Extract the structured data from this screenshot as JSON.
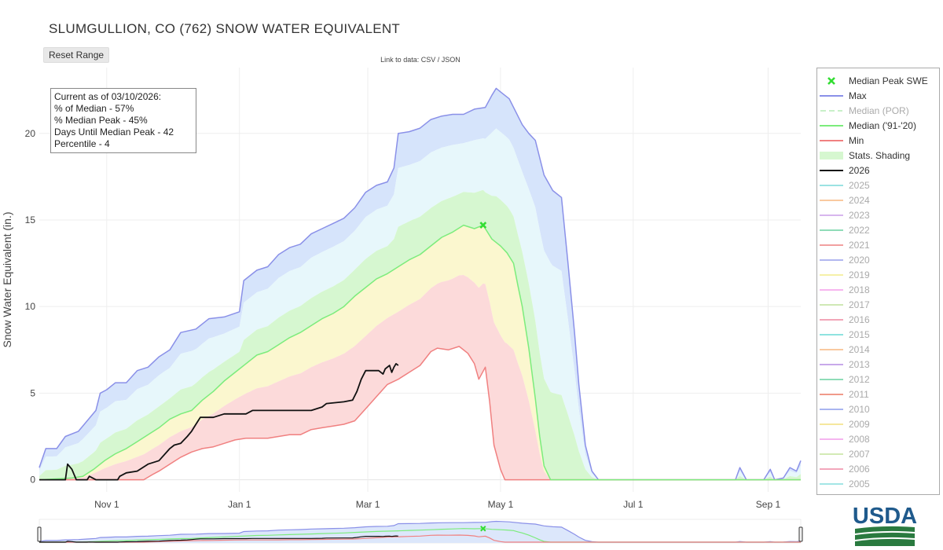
{
  "title": "SLUMGULLION, CO (762) SNOW WATER EQUIVALENT",
  "reset_label": "Reset Range",
  "data_link": {
    "prefix": "Link to data:",
    "csv": "CSV",
    "sep": "/",
    "json": "JSON"
  },
  "info": {
    "line1": "Current as of 03/10/2026:",
    "line2": "% of Median - 57%",
    "line3": "% Median Peak - 45%",
    "line4": "Days Until Median Peak - 42",
    "line5": "Percentile - 4"
  },
  "colors": {
    "max": "#8a90e8",
    "median": "#7cec7c",
    "min": "#f08080",
    "current": "#111111",
    "band_outer": "#d6e4fb",
    "band_2": "#e7f7fb",
    "band_3": "#d6f7d0",
    "band_4": "#fbf7cf",
    "band_inner": "#fcdada",
    "peak": "#33dd33"
  },
  "legend": [
    {
      "label": "Median Peak SWE",
      "kind": "marker",
      "color": "#33dd33",
      "dim": false
    },
    {
      "label": "Max",
      "kind": "line",
      "color": "#8a90e8",
      "dim": false
    },
    {
      "label": "Median (POR)",
      "kind": "dash",
      "color": "#c8f0c8",
      "dim": true
    },
    {
      "label": "Median ('91-'20)",
      "kind": "line",
      "color": "#7cec7c",
      "dim": false
    },
    {
      "label": "Min",
      "kind": "line",
      "color": "#f08080",
      "dim": false
    },
    {
      "label": "Stats. Shading",
      "kind": "box",
      "color": "#d6f7d0",
      "dim": false
    },
    {
      "label": "2026",
      "kind": "line",
      "color": "#111111",
      "dim": false
    },
    {
      "label": "2025",
      "kind": "line",
      "color": "#9be3e3",
      "dim": true
    },
    {
      "label": "2024",
      "kind": "line",
      "color": "#f9c9a0",
      "dim": true
    },
    {
      "label": "2023",
      "kind": "line",
      "color": "#d7b6ee",
      "dim": true
    },
    {
      "label": "2022",
      "kind": "line",
      "color": "#8fdcb8",
      "dim": true
    },
    {
      "label": "2021",
      "kind": "line",
      "color": "#f2a0a0",
      "dim": true
    },
    {
      "label": "2020",
      "kind": "line",
      "color": "#b2b7f0",
      "dim": true
    },
    {
      "label": "2019",
      "kind": "line",
      "color": "#f5f0a8",
      "dim": true
    },
    {
      "label": "2018",
      "kind": "line",
      "color": "#f7b6ef",
      "dim": true
    },
    {
      "label": "2017",
      "kind": "line",
      "color": "#cfe8b5",
      "dim": true
    },
    {
      "label": "2016",
      "kind": "line",
      "color": "#f2a6b8",
      "dim": true
    },
    {
      "label": "2015",
      "kind": "line",
      "color": "#8fe3e0",
      "dim": true
    },
    {
      "label": "2014",
      "kind": "line",
      "color": "#f9c9a0",
      "dim": true
    },
    {
      "label": "2013",
      "kind": "line",
      "color": "#c8a9ea",
      "dim": true
    },
    {
      "label": "2012",
      "kind": "line",
      "color": "#8fdcb8",
      "dim": true
    },
    {
      "label": "2011",
      "kind": "line",
      "color": "#f09a8a",
      "dim": true
    },
    {
      "label": "2010",
      "kind": "line",
      "color": "#a9b5f0",
      "dim": true
    },
    {
      "label": "2009",
      "kind": "line",
      "color": "#f6e79e",
      "dim": true
    },
    {
      "label": "2008",
      "kind": "line",
      "color": "#f5b5ef",
      "dim": true
    },
    {
      "label": "2007",
      "kind": "line",
      "color": "#d3eab5",
      "dim": true
    },
    {
      "label": "2006",
      "kind": "line",
      "color": "#f3a7bb",
      "dim": true
    },
    {
      "label": "2005",
      "kind": "line",
      "color": "#a3e6e6",
      "dim": true
    }
  ],
  "logo_text": "USDA",
  "chart_data": {
    "type": "area",
    "title": "SLUMGULLION, CO (762) SNOW WATER EQUIVALENT",
    "xlabel": "",
    "ylabel": "Snow Water Equivalent (in.)",
    "x_unit": "days since Oct 1",
    "xlim": [
      0,
      350
    ],
    "ylim": [
      -0.7,
      23.8
    ],
    "xticks": [
      {
        "day": 31,
        "label": "Nov 1"
      },
      {
        "day": 92,
        "label": "Jan 1"
      },
      {
        "day": 151,
        "label": "Mar 1"
      },
      {
        "day": 212,
        "label": "May 1"
      },
      {
        "day": 273,
        "label": "Jul 1"
      },
      {
        "day": 335,
        "label": "Sep 1"
      }
    ],
    "yticks": [
      0,
      5,
      10,
      15,
      20
    ],
    "grid": true,
    "legend_position": "right",
    "median_peak": {
      "day": 204,
      "value": 14.7
    },
    "series": [
      {
        "name": "Max",
        "points": [
          [
            0,
            0.7
          ],
          [
            3,
            1.8
          ],
          [
            8,
            1.8
          ],
          [
            12,
            2.5
          ],
          [
            18,
            2.8
          ],
          [
            22,
            3.4
          ],
          [
            26,
            4.0
          ],
          [
            28,
            5.0
          ],
          [
            31,
            5.2
          ],
          [
            35,
            5.6
          ],
          [
            40,
            5.6
          ],
          [
            45,
            6.3
          ],
          [
            50,
            6.5
          ],
          [
            55,
            7.1
          ],
          [
            60,
            7.5
          ],
          [
            65,
            8.5
          ],
          [
            72,
            8.7
          ],
          [
            78,
            9.3
          ],
          [
            85,
            9.4
          ],
          [
            92,
            9.7
          ],
          [
            94,
            11.5
          ],
          [
            100,
            12.1
          ],
          [
            105,
            12.3
          ],
          [
            110,
            13.0
          ],
          [
            115,
            13.4
          ],
          [
            120,
            13.6
          ],
          [
            125,
            14.2
          ],
          [
            130,
            14.5
          ],
          [
            135,
            14.8
          ],
          [
            140,
            15.1
          ],
          [
            145,
            15.7
          ],
          [
            150,
            16.6
          ],
          [
            155,
            17.0
          ],
          [
            160,
            17.2
          ],
          [
            163,
            18.0
          ],
          [
            165,
            20.0
          ],
          [
            170,
            20.1
          ],
          [
            175,
            20.3
          ],
          [
            180,
            20.8
          ],
          [
            185,
            21.0
          ],
          [
            190,
            21.1
          ],
          [
            195,
            21.1
          ],
          [
            200,
            21.4
          ],
          [
            205,
            21.5
          ],
          [
            208,
            22.2
          ],
          [
            210,
            22.6
          ],
          [
            212,
            22.4
          ],
          [
            216,
            22.0
          ],
          [
            222,
            20.5
          ],
          [
            225,
            20.0
          ],
          [
            228,
            19.6
          ],
          [
            232,
            17.6
          ],
          [
            236,
            16.7
          ],
          [
            240,
            16.3
          ],
          [
            243,
            12.5
          ],
          [
            246,
            8.5
          ],
          [
            248,
            5.5
          ],
          [
            251,
            2.0
          ],
          [
            254,
            0.5
          ],
          [
            257,
            0.0
          ],
          [
            320,
            0.0
          ],
          [
            322,
            0.7
          ],
          [
            325,
            0.0
          ],
          [
            333,
            0.0
          ],
          [
            336,
            0.6
          ],
          [
            338,
            0.0
          ],
          [
            342,
            0.1
          ],
          [
            345,
            0.7
          ],
          [
            348,
            0.5
          ],
          [
            350,
            1.1
          ]
        ]
      },
      {
        "name": "Median ('91-'20)",
        "points": [
          [
            0,
            0.0
          ],
          [
            15,
            0.1
          ],
          [
            20,
            0.2
          ],
          [
            25,
            0.6
          ],
          [
            30,
            1.1
          ],
          [
            35,
            1.5
          ],
          [
            40,
            1.8
          ],
          [
            45,
            2.2
          ],
          [
            50,
            2.6
          ],
          [
            55,
            3.0
          ],
          [
            60,
            3.5
          ],
          [
            65,
            3.8
          ],
          [
            70,
            4.0
          ],
          [
            75,
            4.6
          ],
          [
            80,
            5.1
          ],
          [
            85,
            5.7
          ],
          [
            90,
            6.2
          ],
          [
            95,
            6.7
          ],
          [
            100,
            7.2
          ],
          [
            105,
            7.4
          ],
          [
            110,
            7.8
          ],
          [
            115,
            8.2
          ],
          [
            120,
            8.5
          ],
          [
            125,
            8.9
          ],
          [
            130,
            9.3
          ],
          [
            135,
            9.6
          ],
          [
            140,
            10.0
          ],
          [
            145,
            10.6
          ],
          [
            150,
            11.1
          ],
          [
            155,
            11.6
          ],
          [
            160,
            11.9
          ],
          [
            165,
            12.3
          ],
          [
            170,
            12.7
          ],
          [
            175,
            13.0
          ],
          [
            180,
            13.5
          ],
          [
            185,
            14.0
          ],
          [
            190,
            14.3
          ],
          [
            195,
            14.7
          ],
          [
            200,
            14.5
          ],
          [
            204,
            14.7
          ],
          [
            208,
            13.9
          ],
          [
            212,
            13.5
          ],
          [
            215,
            13.1
          ],
          [
            218,
            12.5
          ],
          [
            220,
            11.2
          ],
          [
            222,
            10.0
          ],
          [
            225,
            7.6
          ],
          [
            228,
            4.7
          ],
          [
            230,
            2.5
          ],
          [
            232,
            0.8
          ],
          [
            235,
            0.0
          ],
          [
            350,
            0.0
          ]
        ]
      },
      {
        "name": "Min",
        "points": [
          [
            0,
            0.0
          ],
          [
            48,
            0.0
          ],
          [
            52,
            0.3
          ],
          [
            55,
            0.5
          ],
          [
            60,
            0.9
          ],
          [
            65,
            1.3
          ],
          [
            70,
            1.6
          ],
          [
            75,
            1.8
          ],
          [
            80,
            1.9
          ],
          [
            85,
            2.1
          ],
          [
            90,
            2.3
          ],
          [
            95,
            2.4
          ],
          [
            100,
            2.4
          ],
          [
            105,
            2.4
          ],
          [
            110,
            2.5
          ],
          [
            115,
            2.6
          ],
          [
            120,
            2.6
          ],
          [
            125,
            2.9
          ],
          [
            130,
            3.0
          ],
          [
            135,
            3.1
          ],
          [
            140,
            3.2
          ],
          [
            145,
            3.4
          ],
          [
            150,
            4.1
          ],
          [
            155,
            4.8
          ],
          [
            160,
            5.5
          ],
          [
            165,
            5.8
          ],
          [
            170,
            6.2
          ],
          [
            175,
            6.6
          ],
          [
            180,
            7.4
          ],
          [
            183,
            7.6
          ],
          [
            188,
            7.5
          ],
          [
            193,
            7.7
          ],
          [
            197,
            7.3
          ],
          [
            200,
            6.7
          ],
          [
            202,
            5.8
          ],
          [
            205,
            6.5
          ],
          [
            207,
            4.5
          ],
          [
            209,
            2.0
          ],
          [
            212,
            0.6
          ],
          [
            214,
            0.0
          ],
          [
            350,
            0.0
          ]
        ]
      },
      {
        "name": "2026",
        "points": [
          [
            0,
            0.0
          ],
          [
            12,
            0.0
          ],
          [
            13,
            0.9
          ],
          [
            15,
            0.6
          ],
          [
            17,
            0.0
          ],
          [
            22,
            0.0
          ],
          [
            23,
            0.2
          ],
          [
            26,
            0.0
          ],
          [
            36,
            0.0
          ],
          [
            37,
            0.2
          ],
          [
            40,
            0.4
          ],
          [
            45,
            0.5
          ],
          [
            50,
            0.9
          ],
          [
            55,
            1.1
          ],
          [
            60,
            1.8
          ],
          [
            62,
            2.0
          ],
          [
            65,
            2.1
          ],
          [
            68,
            2.5
          ],
          [
            70,
            2.8
          ],
          [
            72,
            3.2
          ],
          [
            74,
            3.6
          ],
          [
            80,
            3.6
          ],
          [
            85,
            3.8
          ],
          [
            95,
            3.8
          ],
          [
            98,
            4.0
          ],
          [
            125,
            4.0
          ],
          [
            130,
            4.2
          ],
          [
            132,
            4.4
          ],
          [
            140,
            4.5
          ],
          [
            144,
            4.6
          ],
          [
            146,
            5.1
          ],
          [
            148,
            5.8
          ],
          [
            150,
            6.3
          ],
          [
            156,
            6.3
          ],
          [
            158,
            6.1
          ],
          [
            159,
            6.4
          ],
          [
            161,
            6.6
          ],
          [
            162,
            6.2
          ],
          [
            163,
            6.5
          ],
          [
            164,
            6.7
          ],
          [
            165,
            6.6
          ]
        ]
      }
    ],
    "bands": [
      {
        "name": "Max-90%",
        "color": "#d6e4fb"
      },
      {
        "name": "90%-70%",
        "color": "#e7f7fb"
      },
      {
        "name": "70%-Median",
        "color": "#d6f7d0"
      },
      {
        "name": "Median-30%",
        "color": "#fbf7cf"
      },
      {
        "name": "30%-Min",
        "color": "#fcdada"
      }
    ]
  }
}
